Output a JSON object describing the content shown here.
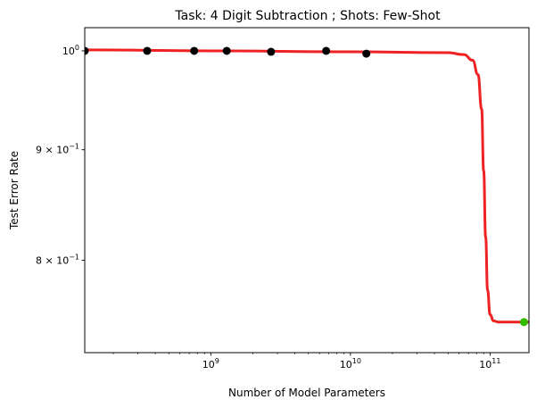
{
  "chart_data": {
    "type": "scatter",
    "title": "Task: 4 Digit Subtraction ; Shots: Few-Shot",
    "xlabel": "Number of Model Parameters",
    "ylabel": "Test Error Rate",
    "xscale": "log",
    "yscale": "log",
    "xlim": [
      125000000.0,
      190000000000.0
    ],
    "ylim": [
      0.725,
      1.025
    ],
    "x_major_ticks": [
      {
        "value": 1000000000.0,
        "label_base": "10",
        "label_exp": "9"
      },
      {
        "value": 10000000000.0,
        "label_base": "10",
        "label_exp": "10"
      },
      {
        "value": 100000000000.0,
        "label_base": "10",
        "label_exp": "11"
      }
    ],
    "y_ticks": [
      {
        "value": 1.0,
        "label_base": "10",
        "label_exp": "0",
        "mantissa": ""
      },
      {
        "value": 0.9,
        "label_base": "10",
        "label_exp": "−1",
        "mantissa": "9 × "
      },
      {
        "value": 0.8,
        "label_base": "10",
        "label_exp": "−1",
        "mantissa": "8 × "
      }
    ],
    "grid": false,
    "series": [
      {
        "kind": "points",
        "color": "#000000",
        "x": [
          125000000.0,
          350000000.0,
          760000000.0,
          1300000000.0,
          2700000000.0,
          6700000000.0,
          13000000000.0
        ],
        "y": [
          1.0,
          1.0,
          1.0,
          1.0,
          0.999,
          1.0,
          0.997
        ]
      },
      {
        "kind": "points",
        "color": "#33bb00",
        "x": [
          175000000000.0
        ],
        "y": [
          0.749
        ]
      },
      {
        "kind": "fit",
        "color": "#ee2222",
        "x": [
          125000000.0,
          1000000000.0,
          10000000000.0,
          50000000000.0,
          65000000000.0,
          75000000000.0,
          82000000000.0,
          87000000000.0,
          90000000000.0,
          93000000000.0,
          96000000000.0,
          100000000000.0,
          106000000000.0,
          115000000000.0,
          190000000000.0
        ],
        "y": [
          1.001,
          1.0,
          0.999,
          0.998,
          0.996,
          0.99,
          0.975,
          0.94,
          0.88,
          0.82,
          0.775,
          0.755,
          0.75,
          0.749,
          0.749
        ]
      }
    ]
  }
}
